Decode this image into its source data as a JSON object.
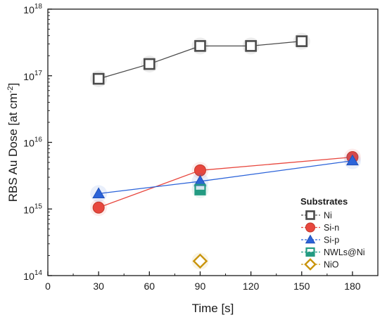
{
  "chart_data": {
    "type": "scatter",
    "xlabel": "Time [s]",
    "ylabel_main": "RBS Au Dose [at cm",
    "ylabel_sup": "-2",
    "ylabel_end": "]",
    "xlim": [
      0,
      195
    ],
    "ylim": [
      100000000000000,
      1000000000000000000
    ],
    "yscale": "log",
    "x_ticks": [
      0,
      30,
      60,
      90,
      120,
      150,
      180
    ],
    "x_tick_labels": [
      "0",
      "30",
      "60",
      "90",
      "120",
      "150",
      "180"
    ],
    "y_ticks": [
      {
        "value": 100000000000000,
        "base": "10",
        "exp": "14"
      },
      {
        "value": 1000000000000000,
        "base": "10",
        "exp": "15"
      },
      {
        "value": 10000000000000000,
        "base": "10",
        "exp": "16"
      },
      {
        "value": 100000000000000000,
        "base": "10",
        "exp": "17"
      },
      {
        "value": 1000000000000000000,
        "base": "10",
        "exp": "18"
      }
    ],
    "grid": false,
    "legend": {
      "title": "Substrates",
      "placement": "bottom-right"
    },
    "series": [
      {
        "name": "Ni",
        "marker": "square-open",
        "color": "#4a4a4a",
        "line": true,
        "points": [
          {
            "x": 30,
            "y": 90000000000000000
          },
          {
            "x": 60,
            "y": 150000000000000000
          },
          {
            "x": 90,
            "y": 280000000000000000
          },
          {
            "x": 120,
            "y": 280000000000000000
          },
          {
            "x": 150,
            "y": 330000000000000000
          }
        ]
      },
      {
        "name": "Si-n",
        "marker": "circle",
        "color": "#e8473e",
        "line": true,
        "points": [
          {
            "x": 30,
            "y": 1050000000000000
          },
          {
            "x": 90,
            "y": 3800000000000000
          },
          {
            "x": 180,
            "y": 6000000000000000
          }
        ]
      },
      {
        "name": "Si-p",
        "marker": "triangle",
        "color": "#2b63d9",
        "line": true,
        "points": [
          {
            "x": 30,
            "y": 1700000000000000
          },
          {
            "x": 90,
            "y": 2600000000000000
          },
          {
            "x": 180,
            "y": 5300000000000000
          }
        ]
      },
      {
        "name": "NWLs@Ni",
        "marker": "square-half",
        "color": "#239b82",
        "line": false,
        "points": [
          {
            "x": 90,
            "y": 1950000000000000
          }
        ]
      },
      {
        "name": "NiO",
        "marker": "diamond-open",
        "color": "#c9940c",
        "line": false,
        "points": [
          {
            "x": 90,
            "y": 165000000000000
          }
        ]
      }
    ]
  }
}
